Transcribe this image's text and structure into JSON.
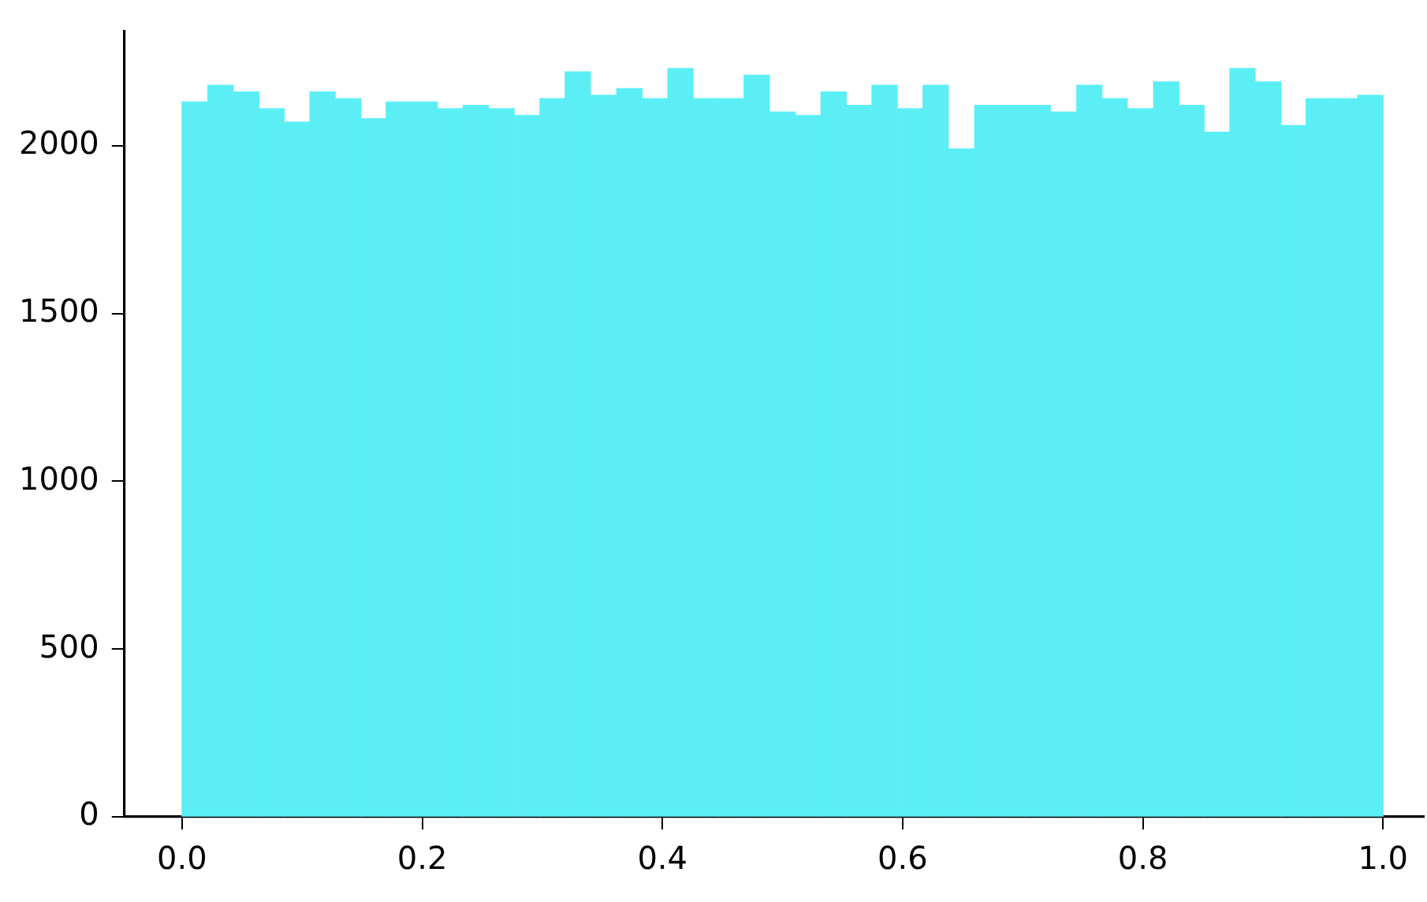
{
  "chart_data": {
    "type": "histogram",
    "bins": [
      0,
      0.021,
      0.043,
      0.064,
      0.085,
      0.106,
      0.128,
      0.149,
      0.17,
      0.191,
      0.213,
      0.234,
      0.255,
      0.277,
      0.298,
      0.319,
      0.34,
      0.362,
      0.383,
      0.404,
      0.426,
      0.447,
      0.468,
      0.489,
      0.511,
      0.532,
      0.553,
      0.574,
      0.596,
      0.617,
      0.638,
      0.66,
      0.681,
      0.702,
      0.723,
      0.745,
      0.766,
      0.787,
      0.809,
      0.83,
      0.851,
      0.872,
      0.894,
      0.915,
      0.936,
      0.957,
      0.979,
      1
    ],
    "values": [
      2130,
      2180,
      2160,
      2110,
      2070,
      2160,
      2140,
      2080,
      2130,
      2130,
      2110,
      2120,
      2110,
      2090,
      2140,
      2220,
      2150,
      2170,
      2140,
      2230,
      2140,
      2140,
      2210,
      2100,
      2090,
      2160,
      2120,
      2180,
      2110,
      2180,
      1990,
      2120,
      2120,
      2120,
      2100,
      2180,
      2140,
      2110,
      2190,
      2120,
      2040,
      2230,
      2190,
      2060,
      2140,
      2140,
      2150
    ],
    "color": "#5befF5",
    "xlim": [
      -0.048,
      1.034
    ],
    "xticks": [
      {
        "value": 0,
        "label": "0.0"
      },
      {
        "value": 0.2,
        "label": "0.2"
      },
      {
        "value": 0.4,
        "label": "0.4"
      },
      {
        "value": 0.6,
        "label": "0.6"
      },
      {
        "value": 0.8,
        "label": "0.8"
      },
      {
        "value": 1,
        "label": "1.0"
      }
    ],
    "ylim": [
      0,
      2340
    ],
    "yticks": [
      0,
      500,
      1000,
      1500,
      2000
    ],
    "grid": false,
    "legend": false
  }
}
